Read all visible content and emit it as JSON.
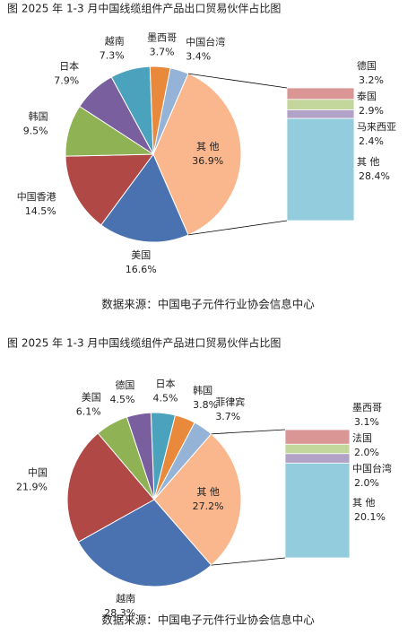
{
  "chart_data": [
    {
      "type": "pie-of-bar",
      "title": "图    2025 年 1-3 月中国线缆组件产品出口贸易伙伴占比图",
      "categories": [
        "中国台湾",
        "其 他",
        "美国",
        "中国香港",
        "韩国",
        "日本",
        "越南",
        "墨西哥"
      ],
      "values": [
        3.4,
        36.9,
        16.6,
        14.5,
        9.5,
        7.9,
        7.3,
        3.7
      ],
      "value_labels": [
        "3.4%",
        "36.9%",
        "16.6%",
        "14.5%",
        "9.5%",
        "7.9%",
        "7.3%",
        "3.7%"
      ],
      "colors": [
        "#95b3d7",
        "#fab68c",
        "#4a72b0",
        "#b04845",
        "#8fb254",
        "#7a5f9e",
        "#4aa2bd",
        "#e8893c"
      ],
      "breakdown": {
        "categories": [
          "德国",
          "泰国",
          "马来西亚",
          "其 他"
        ],
        "values": [
          3.2,
          2.9,
          2.4,
          28.4
        ],
        "value_labels": [
          "3.2%",
          "2.9%",
          "2.4%",
          "28.4%"
        ],
        "colors": [
          "#d99694",
          "#c3d69b",
          "#b3a2c7",
          "#93cddd"
        ]
      },
      "source": "数据来源：中国电子元件行业协会信息中心"
    },
    {
      "type": "pie-of-bar",
      "title": "图    2025 年 1-3 月中国线缆组件产品进口贸易伙伴占比图",
      "categories": [
        "日本",
        "韩国",
        "菲律宾",
        "其 他",
        "越南",
        "中国",
        "美国",
        "德国"
      ],
      "values": [
        4.5,
        3.8,
        3.7,
        27.2,
        28.3,
        21.9,
        6.1,
        4.5
      ],
      "value_labels": [
        "4.5%",
        "3.8%",
        "3.7%",
        "27.2%",
        "28.3%",
        "21.9%",
        "6.1%",
        "4.5%"
      ],
      "colors": [
        "#4aa2bd",
        "#e8893c",
        "#95b3d7",
        "#fab68c",
        "#4a72b0",
        "#b04845",
        "#8fb254",
        "#7a5f9e"
      ],
      "breakdown": {
        "categories": [
          "墨西哥",
          "法国",
          "中国台湾",
          "其 他"
        ],
        "values": [
          3.1,
          2.0,
          2.0,
          20.1
        ],
        "value_labels": [
          "3.1%",
          "2.0%",
          "2.0%",
          "20.1%"
        ],
        "colors": [
          "#d99694",
          "#c3d69b",
          "#b3a2c7",
          "#93cddd"
        ]
      },
      "source": "数据来源：中国电子元件行业协会信息中心"
    }
  ]
}
